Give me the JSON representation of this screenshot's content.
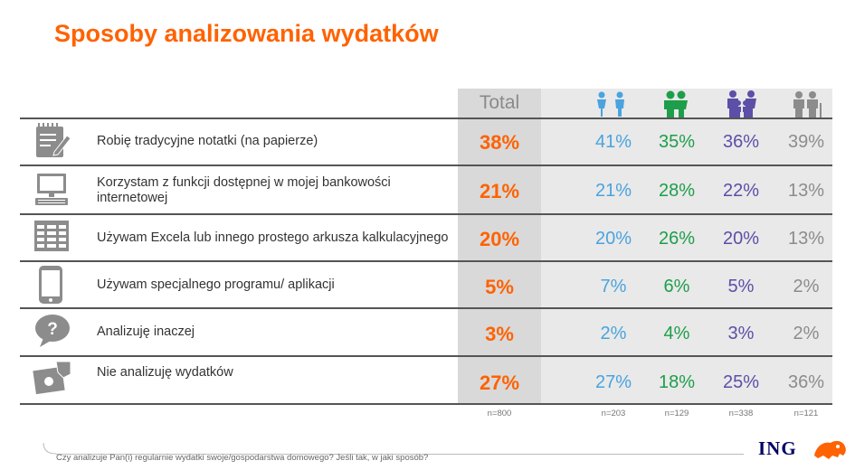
{
  "title": "Sposoby analizowania wydatków",
  "columns": {
    "total_label": "Total",
    "icons": [
      "pair-of-persons-icon",
      "couple-icon",
      "family-icon",
      "elderly-couple-icon"
    ]
  },
  "colors": {
    "accent": "#ff6200",
    "total": "#ff6200",
    "group1": "#4aa3df",
    "group2": "#1e9e4a",
    "group3": "#5b4fa8",
    "group4": "#8c8c8c",
    "brand": "#000066"
  },
  "chart_data": {
    "type": "table",
    "title": "Sposoby analizowania wydatków",
    "columns": [
      "Total",
      "",
      "",
      "",
      ""
    ],
    "rows": [
      {
        "label": "Robię tradycyjne notatki (na papierze)",
        "icon": "notepad-icon",
        "values": [
          "38%",
          "41%",
          "35%",
          "36%",
          "39%"
        ]
      },
      {
        "label": "Korzystam z funkcji dostępnej w mojej bankowości internetowej",
        "icon": "computer-icon",
        "values": [
          "21%",
          "21%",
          "28%",
          "22%",
          "13%"
        ]
      },
      {
        "label": "Używam Excela lub innego prostego arkusza kalkulacyjnego",
        "icon": "spreadsheet-icon",
        "values": [
          "20%",
          "20%",
          "26%",
          "20%",
          "13%"
        ]
      },
      {
        "label": "Używam specjalnego programu/ aplikacji",
        "icon": "smartphone-icon",
        "values": [
          "5%",
          "7%",
          "6%",
          "5%",
          "2%"
        ]
      },
      {
        "label": "Analizuję inaczej",
        "icon": "question-bubble-icon",
        "values": [
          "3%",
          "2%",
          "4%",
          "3%",
          "2%"
        ]
      },
      {
        "label": "Nie analizuję wydatków",
        "icon": "cash-hand-icon",
        "values": [
          "27%",
          "27%",
          "18%",
          "25%",
          "36%"
        ]
      }
    ],
    "sample_sizes": [
      "n=800",
      "n=203",
      "n=129",
      "n=338",
      "n=121"
    ]
  },
  "footnote": "Czy analizuje Pan(i) regularnie wydatki swoje/gospodarstwa domowego? Jeśli tak, w jaki sposób?",
  "logo": {
    "text": "ING"
  }
}
